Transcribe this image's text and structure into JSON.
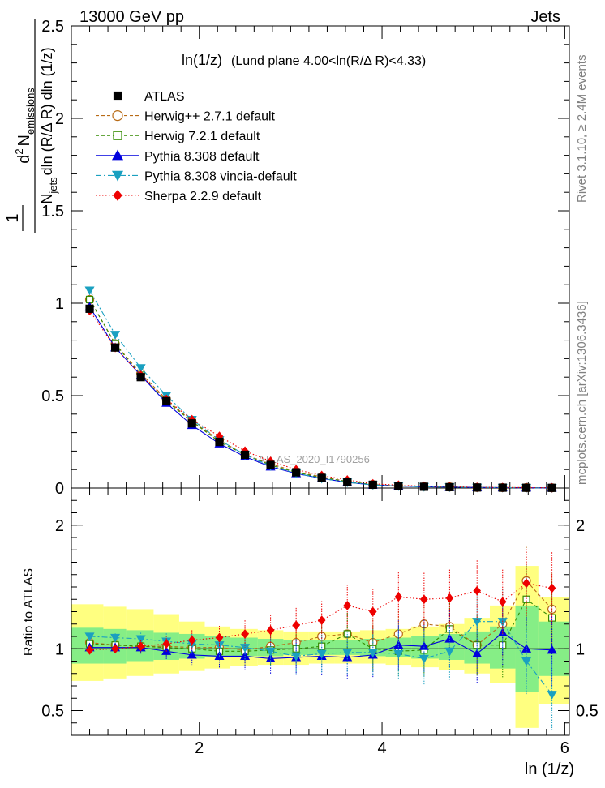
{
  "header": {
    "left": "13000 GeV pp",
    "right": "Jets"
  },
  "plot_title": {
    "main": "ln(1/z)",
    "detail": "(Lund plane 4.00<ln(R/Δ R)<4.33)"
  },
  "side_labels": {
    "rivet": "Rivet 3.1.10, ≥ 2.4M events",
    "mcplots": "mcplots.cern.ch [arXiv:1306.3436]"
  },
  "watermark": "ATLAS_2020_I1790256",
  "y_axis_title": {
    "frac_numerator": "1",
    "frac_denominator": "N",
    "denominator_sub": "jets",
    "denominator_rest": "dln (R/Δ R) dln (1/z)",
    "main_d": "d",
    "main_sup": "2",
    "main_n": "N",
    "main_sub": "emissions"
  },
  "ratio_y_title": "Ratio to ATLAS",
  "x_axis_title": "ln (1/z)",
  "colors": {
    "band_yellow": "#ffff80",
    "band_green": "#86ee86",
    "atlas": "#000000",
    "herwigpp": "#b86b16",
    "herwig7": "#338a00",
    "pythia": "#0000dd",
    "vincia": "#1aa0c0",
    "sherpa": "#ee0000"
  },
  "chart_data": {
    "type": "line",
    "x": [
      0.8,
      1.08,
      1.36,
      1.64,
      1.92,
      2.22,
      2.5,
      2.78,
      3.06,
      3.34,
      3.62,
      3.9,
      4.18,
      4.46,
      4.74,
      5.04,
      5.32,
      5.58,
      5.86
    ],
    "main_ylim": [
      0,
      2.5
    ],
    "main_yticks": [
      "0",
      "0.5",
      "1",
      "1.5",
      "2",
      "2.5"
    ],
    "ratio_ylim": [
      0.3,
      2.3
    ],
    "ratio_yticks": [
      "0.5",
      "1",
      "2"
    ],
    "xlim": [
      0.6,
      6.05
    ],
    "xticks": [
      "2",
      "4",
      "6"
    ],
    "series": [
      {
        "name": "ATLAS",
        "key": "atlas",
        "values": [
          0.97,
          0.76,
          0.6,
          0.47,
          0.35,
          0.25,
          0.18,
          0.125,
          0.085,
          0.055,
          0.032,
          0.018,
          0.011,
          0.007,
          0.005,
          0.003,
          0.002,
          0.0015,
          0.001
        ]
      },
      {
        "name": "Herwig++ 2.7.1 default",
        "key": "herwigpp",
        "values": [
          1.02,
          0.78,
          0.62,
          0.48,
          0.36,
          0.26,
          0.18,
          0.13,
          0.09,
          0.06,
          0.036,
          0.019,
          0.012,
          0.008,
          0.006,
          0.003,
          0.0024,
          0.0023,
          0.0013
        ]
      },
      {
        "name": "Herwig 7.2.1 default",
        "key": "herwig7",
        "values": [
          1.02,
          0.78,
          0.61,
          0.47,
          0.36,
          0.25,
          0.18,
          0.124,
          0.085,
          0.056,
          0.036,
          0.018,
          0.011,
          0.007,
          0.006,
          0.003,
          0.002,
          0.0021,
          0.0013
        ]
      },
      {
        "name": "Pythia 8.308 default",
        "key": "pythia",
        "values": [
          0.98,
          0.76,
          0.61,
          0.46,
          0.34,
          0.24,
          0.17,
          0.115,
          0.079,
          0.052,
          0.031,
          0.017,
          0.011,
          0.007,
          0.005,
          0.003,
          0.0022,
          0.0015,
          0.001
        ]
      },
      {
        "name": "Pythia 8.308 vincia-default",
        "key": "vincia",
        "values": [
          1.07,
          0.83,
          0.65,
          0.5,
          0.37,
          0.26,
          0.18,
          0.12,
          0.08,
          0.052,
          0.031,
          0.017,
          0.011,
          0.007,
          0.005,
          0.003,
          0.0024,
          0.0013,
          0.0006
        ]
      },
      {
        "name": "Sherpa 2.2.9 default",
        "key": "sherpa",
        "values": [
          0.96,
          0.76,
          0.61,
          0.48,
          0.37,
          0.28,
          0.2,
          0.145,
          0.1,
          0.068,
          0.044,
          0.023,
          0.016,
          0.01,
          0.007,
          0.0044,
          0.0029,
          0.0023,
          0.0015
        ]
      }
    ],
    "ratio_series": [
      {
        "key": "herwigpp",
        "values": [
          1.05,
          1.03,
          1.02,
          1.02,
          1.01,
          1.01,
          0.99,
          1.02,
          1.05,
          1.1,
          1.12,
          1.05,
          1.12,
          1.2,
          1.18,
          1.03,
          1.2,
          1.55,
          1.32
        ]
      },
      {
        "key": "herwig7",
        "values": [
          1.04,
          1.03,
          1.02,
          1.01,
          1.0,
          0.98,
          0.98,
          0.99,
          1.0,
          1.02,
          1.12,
          1.0,
          0.98,
          0.99,
          1.16,
          1.03,
          1.03,
          1.4,
          1.25
        ]
      },
      {
        "key": "pythia",
        "values": [
          1.01,
          1.01,
          1.01,
          0.98,
          0.95,
          0.94,
          0.94,
          0.92,
          0.93,
          0.94,
          0.93,
          0.95,
          1.03,
          1.02,
          1.08,
          0.96,
          1.13,
          1.0,
          0.99
        ]
      },
      {
        "key": "vincia",
        "values": [
          1.1,
          1.09,
          1.08,
          1.06,
          1.04,
          1.03,
          1.01,
          0.98,
          0.94,
          0.96,
          0.97,
          0.97,
          0.96,
          0.92,
          0.98,
          1.22,
          1.22,
          0.9,
          0.63
        ]
      },
      {
        "key": "sherpa",
        "values": [
          0.99,
          1.0,
          1.02,
          1.04,
          1.07,
          1.09,
          1.12,
          1.15,
          1.19,
          1.23,
          1.35,
          1.3,
          1.42,
          1.4,
          1.41,
          1.47,
          1.38,
          1.53,
          1.49
        ]
      }
    ],
    "ratio_bands": {
      "bin_edges": [
        0.6,
        0.95,
        1.2,
        1.5,
        1.78,
        2.06,
        2.34,
        2.64,
        2.92,
        3.2,
        3.48,
        3.76,
        4.04,
        4.32,
        4.62,
        4.9,
        5.18,
        5.46,
        5.72,
        6.05
      ],
      "yellow_lo": [
        0.74,
        0.76,
        0.78,
        0.8,
        0.82,
        0.84,
        0.86,
        0.87,
        0.87,
        0.88,
        0.88,
        0.88,
        0.87,
        0.85,
        0.83,
        0.8,
        0.72,
        0.36,
        0.55
      ],
      "yellow_hi": [
        1.36,
        1.34,
        1.32,
        1.28,
        1.22,
        1.18,
        1.16,
        1.15,
        1.14,
        1.14,
        1.14,
        1.15,
        1.16,
        1.18,
        1.2,
        1.25,
        1.35,
        1.67,
        1.42
      ],
      "green_lo": [
        0.88,
        0.88,
        0.9,
        0.91,
        0.92,
        0.93,
        0.94,
        0.94,
        0.95,
        0.95,
        0.95,
        0.94,
        0.93,
        0.92,
        0.91,
        0.88,
        0.84,
        0.65,
        0.78
      ],
      "green_hi": [
        1.17,
        1.16,
        1.15,
        1.13,
        1.12,
        1.1,
        1.09,
        1.08,
        1.07,
        1.07,
        1.07,
        1.08,
        1.09,
        1.1,
        1.12,
        1.14,
        1.18,
        1.35,
        1.22
      ]
    }
  }
}
